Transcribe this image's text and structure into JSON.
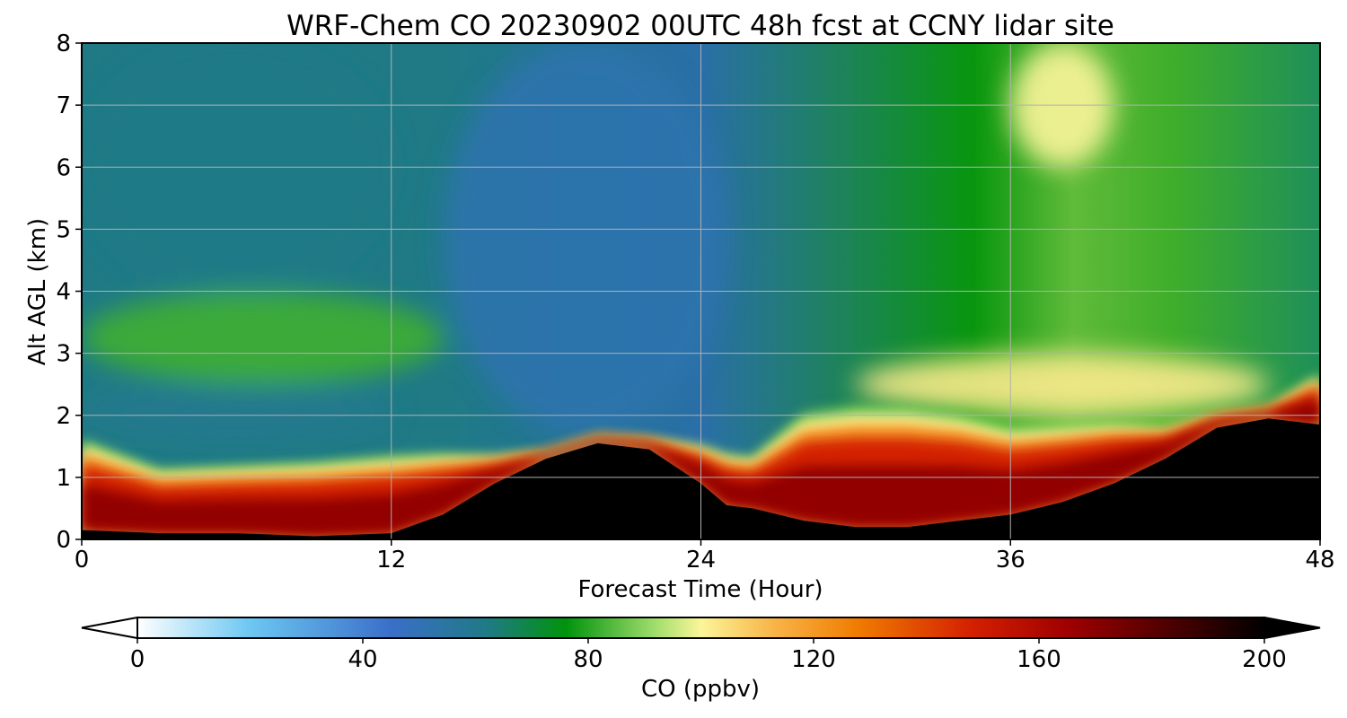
{
  "chart_data": {
    "type": "heatmap",
    "title": "WRF-Chem CO  20230902 00UTC 48h fcst at CCNY lidar site",
    "xlabel": "Forecast Time (Hour)",
    "ylabel": "Alt AGL (km)",
    "xlim": [
      0,
      48
    ],
    "ylim": [
      0,
      8
    ],
    "xticks": [
      0,
      12,
      24,
      36,
      48
    ],
    "yticks": [
      0,
      1,
      2,
      3,
      4,
      5,
      6,
      7,
      8
    ],
    "grid": true,
    "colorbar": {
      "label": "CO  (ppbv)",
      "orientation": "horizontal",
      "range": [
        0,
        200
      ],
      "ticks": [
        0,
        40,
        80,
        120,
        160,
        200
      ],
      "extend": "both",
      "stops": [
        {
          "v": 0,
          "c": "#ffffff"
        },
        {
          "v": 20,
          "c": "#6cc7f2"
        },
        {
          "v": 45,
          "c": "#3a6fc9"
        },
        {
          "v": 62,
          "c": "#1f7a86"
        },
        {
          "v": 76,
          "c": "#00930c"
        },
        {
          "v": 92,
          "c": "#a2de6c"
        },
        {
          "v": 100,
          "c": "#fcf59a"
        },
        {
          "v": 112,
          "c": "#f9b84c"
        },
        {
          "v": 128,
          "c": "#f07b00"
        },
        {
          "v": 148,
          "c": "#d42000"
        },
        {
          "v": 165,
          "c": "#a00000"
        },
        {
          "v": 185,
          "c": "#450000"
        },
        {
          "v": 200,
          "c": "#000000"
        }
      ]
    },
    "x_hours": [
      0,
      3,
      6,
      9,
      12,
      14,
      16,
      18,
      20,
      22,
      24,
      25,
      26,
      28,
      30,
      32,
      34,
      36,
      38,
      40,
      42,
      44,
      46,
      48
    ],
    "mixing_top_km": [
      1.5,
      1.05,
      1.1,
      1.15,
      1.25,
      1.3,
      1.3,
      1.4,
      1.65,
      1.6,
      1.45,
      1.3,
      1.25,
      1.9,
      2.0,
      2.0,
      1.9,
      1.7,
      1.75,
      1.8,
      1.75,
      2.0,
      2.1,
      2.6
    ],
    "ground_top_km": [
      0.15,
      0.1,
      0.1,
      0.05,
      0.1,
      0.4,
      0.9,
      1.3,
      1.55,
      1.45,
      0.9,
      0.55,
      0.5,
      0.3,
      0.2,
      0.2,
      0.3,
      0.4,
      0.6,
      0.9,
      1.3,
      1.8,
      1.95,
      1.85
    ],
    "regions": [
      {
        "name": "upper background",
        "x_from": 0,
        "x_to": 12,
        "z_from": 4.0,
        "z_to": 8,
        "co_ppbv": 62
      },
      {
        "name": "elevated layer",
        "x_from": 0,
        "x_to": 14,
        "z_from": 2.5,
        "z_to": 4.0,
        "co_ppbv": 82
      },
      {
        "name": "clean layer",
        "x_from": 0,
        "x_to": 12,
        "z_from": 1.6,
        "z_to": 2.5,
        "co_ppbv": 60
      },
      {
        "name": "low CO column",
        "x_from": 14,
        "x_to": 25,
        "z_from": 1.7,
        "z_to": 8,
        "co_ppbv": 52
      },
      {
        "name": "upper plume",
        "x_from": 36,
        "x_to": 40,
        "z_from": 6.0,
        "z_to": 8,
        "co_ppbv": 100
      },
      {
        "name": "mid plume",
        "x_from": 30,
        "x_to": 46,
        "z_from": 2.0,
        "z_to": 3.0,
        "co_ppbv": 102
      },
      {
        "name": "boundary layer",
        "x_from": 0,
        "x_to": 48,
        "z_from": 0,
        "z_to": 1.5,
        "co_ppbv": 155
      },
      {
        "name": "near-surface max",
        "x_from": 0,
        "x_to": 48,
        "z_from": 0,
        "z_to": 1.9,
        "co_ppbv": 200
      }
    ]
  }
}
